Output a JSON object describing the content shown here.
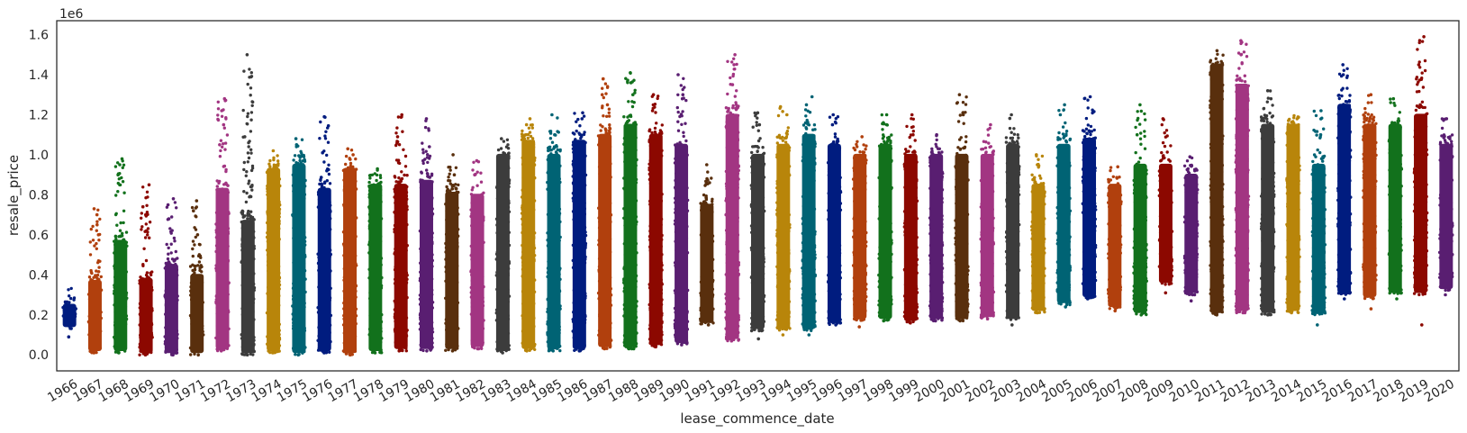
{
  "chart_data": {
    "type": "scatter",
    "subtype": "strip",
    "xlabel": "lease_commence_date",
    "ylabel": "resale_price",
    "y_offset_label": "1e6",
    "ylim": [
      -0.08,
      1.67
    ],
    "yticks": [
      0.0,
      0.2,
      0.4,
      0.6,
      0.8,
      1.0,
      1.2,
      1.4,
      1.6
    ],
    "ytick_labels": [
      "0.0",
      "0.2",
      "0.4",
      "0.6",
      "0.8",
      "1.0",
      "1.2",
      "1.4",
      "1.6"
    ],
    "grid": false,
    "palette": [
      "#001c7f",
      "#b1400d",
      "#12711c",
      "#8c0800",
      "#591e71",
      "#592f0d",
      "#a23582",
      "#3c3c3c",
      "#b8850a",
      "#006374"
    ],
    "categories": [
      "1966",
      "1967",
      "1968",
      "1969",
      "1970",
      "1971",
      "1972",
      "1973",
      "1974",
      "1975",
      "1976",
      "1977",
      "1978",
      "1979",
      "1980",
      "1981",
      "1982",
      "1983",
      "1984",
      "1985",
      "1986",
      "1987",
      "1988",
      "1989",
      "1990",
      "1991",
      "1992",
      "1993",
      "1994",
      "1995",
      "1996",
      "1997",
      "1998",
      "1999",
      "2000",
      "2001",
      "2002",
      "2003",
      "2004",
      "2005",
      "2006",
      "2007",
      "2008",
      "2009",
      "2010",
      "2011",
      "2012",
      "2013",
      "2014",
      "2015",
      "2016",
      "2017",
      "2018",
      "2019",
      "2020"
    ],
    "series": [
      {
        "x": "1966",
        "min": 0.09,
        "max": 0.34,
        "dense_min": 0.13,
        "dense_max": 0.3,
        "outliers_high": []
      },
      {
        "x": "1967",
        "min": 0.01,
        "max": 0.73,
        "dense_min": 0.01,
        "dense_max": 0.42,
        "outliers_high": [
          0.6,
          0.65,
          0.7,
          0.73
        ]
      },
      {
        "x": "1968",
        "min": 0.01,
        "max": 0.98,
        "dense_min": 0.01,
        "dense_max": 0.62,
        "outliers_high": [
          0.85,
          0.9,
          0.95,
          0.98
        ]
      },
      {
        "x": "1969",
        "min": 0.0,
        "max": 0.85,
        "dense_min": 0.0,
        "dense_max": 0.43,
        "outliers_high": [
          0.62,
          0.7,
          0.74,
          0.85
        ]
      },
      {
        "x": "1970",
        "min": 0.0,
        "max": 0.78,
        "dense_min": 0.0,
        "dense_max": 0.5,
        "outliers_high": [
          0.68,
          0.75,
          0.78
        ]
      },
      {
        "x": "1971",
        "min": 0.0,
        "max": 0.77,
        "dense_min": 0.0,
        "dense_max": 0.45,
        "outliers_high": [
          0.6,
          0.72,
          0.77
        ]
      },
      {
        "x": "1972",
        "min": 0.02,
        "max": 1.28,
        "dense_min": 0.02,
        "dense_max": 0.88,
        "outliers_high": [
          1.05,
          1.15,
          1.22,
          1.28
        ]
      },
      {
        "x": "1973",
        "min": 0.0,
        "max": 1.5,
        "dense_min": 0.0,
        "dense_max": 0.72,
        "outliers_high": [
          0.84,
          1.09,
          1.5
        ]
      },
      {
        "x": "1974",
        "min": 0.01,
        "max": 1.02,
        "dense_min": 0.01,
        "dense_max": 0.98,
        "outliers_high": [
          1.02
        ]
      },
      {
        "x": "1975",
        "min": 0.0,
        "max": 1.08,
        "dense_min": 0.0,
        "dense_max": 1.0,
        "outliers_high": [
          1.05,
          1.08
        ]
      },
      {
        "x": "1976",
        "min": 0.01,
        "max": 1.19,
        "dense_min": 0.01,
        "dense_max": 0.88,
        "outliers_high": [
          0.92,
          1.01,
          1.19
        ]
      },
      {
        "x": "1977",
        "min": 0.0,
        "max": 1.03,
        "dense_min": 0.0,
        "dense_max": 0.98,
        "outliers_high": [
          1.0,
          1.03
        ]
      },
      {
        "x": "1978",
        "min": 0.01,
        "max": 0.93,
        "dense_min": 0.01,
        "dense_max": 0.9,
        "outliers_high": [
          0.93
        ]
      },
      {
        "x": "1979",
        "min": 0.02,
        "max": 1.2,
        "dense_min": 0.02,
        "dense_max": 0.9,
        "outliers_high": [
          0.96,
          1.09,
          1.2
        ]
      },
      {
        "x": "1980",
        "min": 0.02,
        "max": 1.18,
        "dense_min": 0.02,
        "dense_max": 0.92,
        "outliers_high": [
          0.97,
          1.04,
          1.18
        ]
      },
      {
        "x": "1981",
        "min": 0.02,
        "max": 1.0,
        "dense_min": 0.02,
        "dense_max": 0.86,
        "outliers_high": [
          0.9,
          1.0
        ]
      },
      {
        "x": "1982",
        "min": 0.03,
        "max": 0.97,
        "dense_min": 0.03,
        "dense_max": 0.85,
        "outliers_high": [
          0.9,
          0.97
        ]
      },
      {
        "x": "1983",
        "min": 0.01,
        "max": 1.08,
        "dense_min": 0.01,
        "dense_max": 1.05,
        "outliers_high": [
          1.08
        ]
      },
      {
        "x": "1984",
        "min": 0.02,
        "max": 1.18,
        "dense_min": 0.02,
        "dense_max": 1.12,
        "outliers_high": [
          1.15,
          1.18
        ]
      },
      {
        "x": "1985",
        "min": 0.02,
        "max": 1.2,
        "dense_min": 0.02,
        "dense_max": 1.05,
        "outliers_high": [
          1.1,
          1.2
        ]
      },
      {
        "x": "1986",
        "min": 0.02,
        "max": 1.21,
        "dense_min": 0.02,
        "dense_max": 1.12,
        "outliers_high": [
          1.18,
          1.21
        ]
      },
      {
        "x": "1987",
        "min": 0.03,
        "max": 1.38,
        "dense_min": 0.03,
        "dense_max": 1.15,
        "outliers_high": [
          1.25,
          1.3,
          1.38
        ]
      },
      {
        "x": "1988",
        "min": 0.03,
        "max": 1.41,
        "dense_min": 0.03,
        "dense_max": 1.2,
        "outliers_high": [
          1.3,
          1.36,
          1.41
        ]
      },
      {
        "x": "1989",
        "min": 0.04,
        "max": 1.3,
        "dense_min": 0.04,
        "dense_max": 1.15,
        "outliers_high": [
          1.22,
          1.3
        ]
      },
      {
        "x": "1990",
        "min": 0.05,
        "max": 1.4,
        "dense_min": 0.05,
        "dense_max": 1.1,
        "outliers_high": [
          1.28,
          1.3,
          1.4
        ]
      },
      {
        "x": "1991",
        "min": 0.15,
        "max": 0.95,
        "dense_min": 0.15,
        "dense_max": 0.8,
        "outliers_high": [
          0.88,
          0.95
        ]
      },
      {
        "x": "1992",
        "min": 0.07,
        "max": 1.5,
        "dense_min": 0.07,
        "dense_max": 1.25,
        "outliers_high": [
          1.35,
          1.45,
          1.5
        ]
      },
      {
        "x": "1993",
        "min": 0.08,
        "max": 1.21,
        "dense_min": 0.12,
        "dense_max": 1.05,
        "outliers_high": [
          1.15,
          1.21
        ]
      },
      {
        "x": "1994",
        "min": 0.1,
        "max": 1.24,
        "dense_min": 0.12,
        "dense_max": 1.1,
        "outliers_high": [
          1.2,
          1.24
        ]
      },
      {
        "x": "1995",
        "min": 0.1,
        "max": 1.29,
        "dense_min": 0.12,
        "dense_max": 1.15,
        "outliers_high": [
          1.25,
          1.29
        ]
      },
      {
        "x": "1996",
        "min": 0.15,
        "max": 1.2,
        "dense_min": 0.15,
        "dense_max": 1.1,
        "outliers_high": [
          1.15,
          1.2
        ]
      },
      {
        "x": "1997",
        "min": 0.14,
        "max": 1.09,
        "dense_min": 0.17,
        "dense_max": 1.05,
        "outliers_high": [
          1.09
        ]
      },
      {
        "x": "1998",
        "min": 0.17,
        "max": 1.2,
        "dense_min": 0.17,
        "dense_max": 1.1,
        "outliers_high": [
          1.15,
          1.2
        ]
      },
      {
        "x": "1999",
        "min": 0.16,
        "max": 1.2,
        "dense_min": 0.16,
        "dense_max": 1.05,
        "outliers_high": [
          1.1,
          1.2
        ]
      },
      {
        "x": "2000",
        "min": 0.17,
        "max": 1.1,
        "dense_min": 0.17,
        "dense_max": 1.05,
        "outliers_high": [
          1.1
        ]
      },
      {
        "x": "2001",
        "min": 0.17,
        "max": 1.3,
        "dense_min": 0.17,
        "dense_max": 1.05,
        "outliers_high": [
          1.2,
          1.3
        ]
      },
      {
        "x": "2002",
        "min": 0.18,
        "max": 1.15,
        "dense_min": 0.18,
        "dense_max": 1.05,
        "outliers_high": [
          1.15
        ]
      },
      {
        "x": "2003",
        "min": 0.15,
        "max": 1.2,
        "dense_min": 0.17,
        "dense_max": 1.1,
        "outliers_high": [
          1.2
        ]
      },
      {
        "x": "2004",
        "min": 0.21,
        "max": 1.0,
        "dense_min": 0.21,
        "dense_max": 0.9,
        "outliers_high": [
          0.95,
          1.0
        ]
      },
      {
        "x": "2005",
        "min": 0.24,
        "max": 1.25,
        "dense_min": 0.25,
        "dense_max": 1.1,
        "outliers_high": [
          1.2,
          1.25
        ]
      },
      {
        "x": "2006",
        "min": 0.28,
        "max": 1.29,
        "dense_min": 0.28,
        "dense_max": 1.13,
        "outliers_high": [
          1.29
        ]
      },
      {
        "x": "2007",
        "min": 0.22,
        "max": 0.94,
        "dense_min": 0.23,
        "dense_max": 0.9,
        "outliers_high": [
          0.94
        ]
      },
      {
        "x": "2008",
        "min": 0.2,
        "max": 1.25,
        "dense_min": 0.2,
        "dense_max": 1.0,
        "outliers_high": [
          1.1,
          1.25
        ]
      },
      {
        "x": "2009",
        "min": 0.31,
        "max": 1.18,
        "dense_min": 0.35,
        "dense_max": 1.0,
        "outliers_high": [
          1.18
        ]
      },
      {
        "x": "2010",
        "min": 0.27,
        "max": 0.99,
        "dense_min": 0.3,
        "dense_max": 0.95,
        "outliers_high": [
          0.99
        ]
      },
      {
        "x": "2011",
        "min": 0.2,
        "max": 1.52,
        "dense_min": 0.2,
        "dense_max": 1.5,
        "outliers_high": [
          1.52
        ]
      },
      {
        "x": "2012",
        "min": 0.21,
        "max": 1.57,
        "dense_min": 0.21,
        "dense_max": 1.4,
        "outliers_high": [
          1.5,
          1.57
        ]
      },
      {
        "x": "2013",
        "min": 0.2,
        "max": 1.32,
        "dense_min": 0.2,
        "dense_max": 1.2,
        "outliers_high": [
          1.28,
          1.32
        ]
      },
      {
        "x": "2014",
        "min": 0.21,
        "max": 1.2,
        "dense_min": 0.21,
        "dense_max": 1.2,
        "outliers_high": []
      },
      {
        "x": "2015",
        "min": 0.15,
        "max": 1.22,
        "dense_min": 0.2,
        "dense_max": 1.0,
        "outliers_high": [
          1.1,
          1.22
        ]
      },
      {
        "x": "2016",
        "min": 0.28,
        "max": 1.45,
        "dense_min": 0.3,
        "dense_max": 1.3,
        "outliers_high": [
          1.4,
          1.45
        ]
      },
      {
        "x": "2017",
        "min": 0.23,
        "max": 1.3,
        "dense_min": 0.28,
        "dense_max": 1.2,
        "outliers_high": [
          1.3
        ]
      },
      {
        "x": "2018",
        "min": 0.28,
        "max": 1.28,
        "dense_min": 0.3,
        "dense_max": 1.2,
        "outliers_high": [
          1.28
        ]
      },
      {
        "x": "2019",
        "min": 0.15,
        "max": 1.59,
        "dense_min": 0.3,
        "dense_max": 1.25,
        "outliers_high": [
          1.45,
          1.59
        ]
      },
      {
        "x": "2020",
        "min": 0.3,
        "max": 1.18,
        "dense_min": 0.32,
        "dense_max": 1.1,
        "outliers_high": [
          1.18
        ]
      }
    ]
  }
}
